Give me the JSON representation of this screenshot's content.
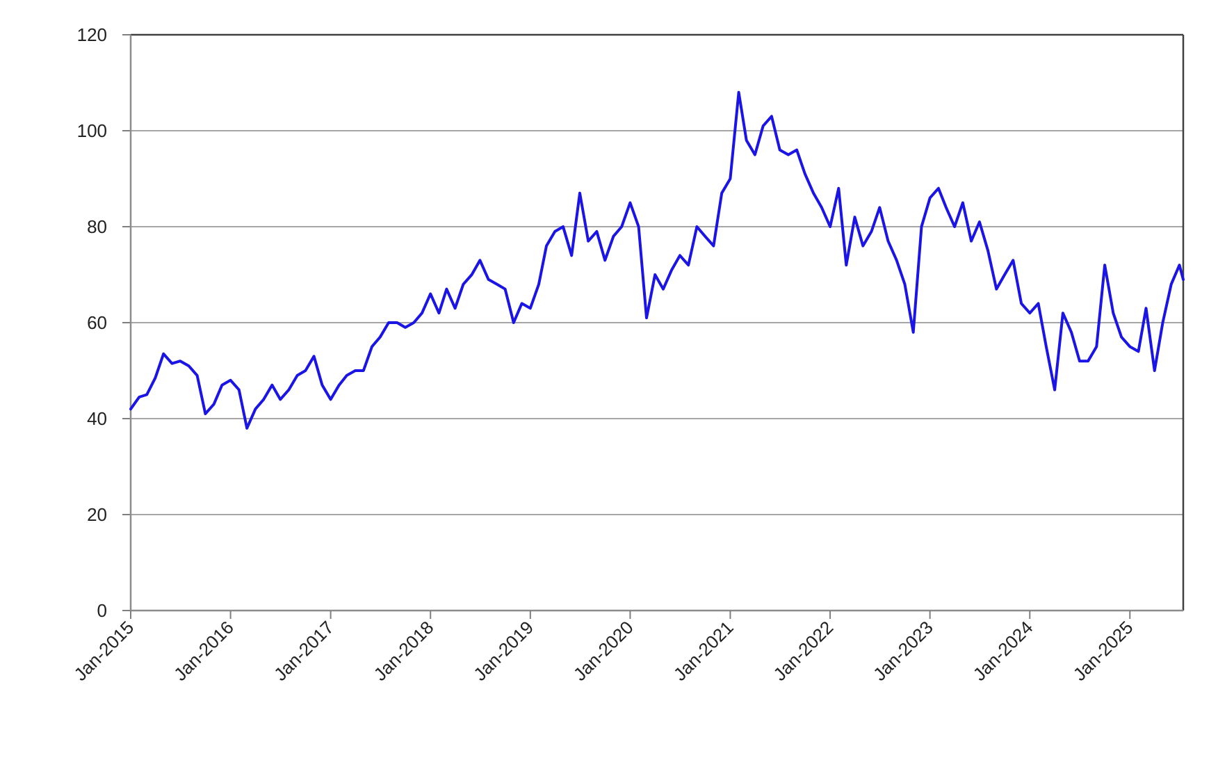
{
  "chart_data": {
    "type": "line",
    "title": "",
    "xlabel": "",
    "ylabel": "",
    "ylim": [
      0,
      120
    ],
    "yticks": [
      0,
      20,
      40,
      60,
      80,
      100,
      120
    ],
    "x_range": [
      "2015-01-01",
      "2025-07-15"
    ],
    "xticks": [
      {
        "date": "2015-01-01",
        "label": "Jan-2015"
      },
      {
        "date": "2016-01-01",
        "label": "Jan-2016"
      },
      {
        "date": "2017-01-01",
        "label": "Jan-2017"
      },
      {
        "date": "2018-01-01",
        "label": "Jan-2018"
      },
      {
        "date": "2019-01-01",
        "label": "Jan-2019"
      },
      {
        "date": "2020-01-01",
        "label": "Jan-2020"
      },
      {
        "date": "2021-01-01",
        "label": "Jan-2021"
      },
      {
        "date": "2022-01-01",
        "label": "Jan-2022"
      },
      {
        "date": "2023-01-01",
        "label": "Jan-2023"
      },
      {
        "date": "2024-01-01",
        "label": "Jan-2024"
      },
      {
        "date": "2025-01-01",
        "label": "Jan-2025"
      }
    ],
    "grid": "horizontal",
    "legend": "none",
    "series": [
      {
        "color": "#1a14e6",
        "points": [
          [
            "2015-01-01",
            42
          ],
          [
            "2015-02-01",
            44.5
          ],
          [
            "2015-03-01",
            45
          ],
          [
            "2015-04-01",
            48.5
          ],
          [
            "2015-05-01",
            53.5
          ],
          [
            "2015-06-01",
            51.5
          ],
          [
            "2015-07-01",
            52
          ],
          [
            "2015-08-01",
            51
          ],
          [
            "2015-09-01",
            49
          ],
          [
            "2015-10-01",
            41
          ],
          [
            "2015-11-01",
            43
          ],
          [
            "2015-12-01",
            47
          ],
          [
            "2016-01-01",
            48
          ],
          [
            "2016-02-01",
            46
          ],
          [
            "2016-03-01",
            38
          ],
          [
            "2016-04-01",
            42
          ],
          [
            "2016-05-01",
            44
          ],
          [
            "2016-06-01",
            47
          ],
          [
            "2016-07-01",
            44
          ],
          [
            "2016-08-01",
            46
          ],
          [
            "2016-09-01",
            49
          ],
          [
            "2016-10-01",
            50
          ],
          [
            "2016-11-01",
            53
          ],
          [
            "2016-12-01",
            47
          ],
          [
            "2017-01-01",
            44
          ],
          [
            "2017-02-01",
            47
          ],
          [
            "2017-03-01",
            49
          ],
          [
            "2017-04-01",
            50
          ],
          [
            "2017-05-01",
            50
          ],
          [
            "2017-06-01",
            55
          ],
          [
            "2017-07-01",
            57
          ],
          [
            "2017-08-01",
            60
          ],
          [
            "2017-09-01",
            60
          ],
          [
            "2017-10-01",
            59
          ],
          [
            "2017-11-01",
            60
          ],
          [
            "2017-12-01",
            62
          ],
          [
            "2018-01-01",
            66
          ],
          [
            "2018-02-01",
            62
          ],
          [
            "2018-03-01",
            67
          ],
          [
            "2018-04-01",
            63
          ],
          [
            "2018-05-01",
            68
          ],
          [
            "2018-06-01",
            70
          ],
          [
            "2018-07-01",
            73
          ],
          [
            "2018-08-01",
            69
          ],
          [
            "2018-09-01",
            68
          ],
          [
            "2018-10-01",
            67
          ],
          [
            "2018-11-01",
            60
          ],
          [
            "2018-12-01",
            64
          ],
          [
            "2019-01-01",
            63
          ],
          [
            "2019-02-01",
            68
          ],
          [
            "2019-03-01",
            76
          ],
          [
            "2019-04-01",
            79
          ],
          [
            "2019-05-01",
            80
          ],
          [
            "2019-06-01",
            74
          ],
          [
            "2019-07-01",
            87
          ],
          [
            "2019-08-01",
            77
          ],
          [
            "2019-09-01",
            79
          ],
          [
            "2019-10-01",
            73
          ],
          [
            "2019-11-01",
            78
          ],
          [
            "2019-12-01",
            80
          ],
          [
            "2020-01-01",
            85
          ],
          [
            "2020-02-01",
            80
          ],
          [
            "2020-03-01",
            61
          ],
          [
            "2020-04-01",
            70
          ],
          [
            "2020-05-01",
            67
          ],
          [
            "2020-06-01",
            71
          ],
          [
            "2020-07-01",
            74
          ],
          [
            "2020-08-01",
            72
          ],
          [
            "2020-09-01",
            80
          ],
          [
            "2020-10-01",
            78
          ],
          [
            "2020-11-01",
            76
          ],
          [
            "2020-12-01",
            87
          ],
          [
            "2021-01-01",
            90
          ],
          [
            "2021-02-01",
            108
          ],
          [
            "2021-03-01",
            98
          ],
          [
            "2021-04-01",
            95
          ],
          [
            "2021-05-01",
            101
          ],
          [
            "2021-06-01",
            103
          ],
          [
            "2021-07-01",
            96
          ],
          [
            "2021-08-01",
            95
          ],
          [
            "2021-09-01",
            96
          ],
          [
            "2021-10-01",
            91
          ],
          [
            "2021-11-01",
            87
          ],
          [
            "2021-12-01",
            84
          ],
          [
            "2022-01-01",
            80
          ],
          [
            "2022-02-01",
            88
          ],
          [
            "2022-03-01",
            72
          ],
          [
            "2022-04-01",
            82
          ],
          [
            "2022-05-01",
            76
          ],
          [
            "2022-06-01",
            79
          ],
          [
            "2022-07-01",
            84
          ],
          [
            "2022-08-01",
            77
          ],
          [
            "2022-09-01",
            73
          ],
          [
            "2022-10-01",
            68
          ],
          [
            "2022-11-01",
            58
          ],
          [
            "2022-12-01",
            80
          ],
          [
            "2023-01-01",
            86
          ],
          [
            "2023-02-01",
            88
          ],
          [
            "2023-03-01",
            84
          ],
          [
            "2023-04-01",
            80
          ],
          [
            "2023-05-01",
            85
          ],
          [
            "2023-06-01",
            77
          ],
          [
            "2023-07-01",
            81
          ],
          [
            "2023-08-01",
            75
          ],
          [
            "2023-09-01",
            67
          ],
          [
            "2023-10-01",
            70
          ],
          [
            "2023-11-01",
            73
          ],
          [
            "2023-12-01",
            64
          ],
          [
            "2024-01-01",
            62
          ],
          [
            "2024-02-01",
            64
          ],
          [
            "2024-03-01",
            55
          ],
          [
            "2024-04-01",
            46
          ],
          [
            "2024-05-01",
            62
          ],
          [
            "2024-06-01",
            58
          ],
          [
            "2024-07-01",
            52
          ],
          [
            "2024-08-01",
            52
          ],
          [
            "2024-09-01",
            55
          ],
          [
            "2024-10-01",
            72
          ],
          [
            "2024-11-01",
            62
          ],
          [
            "2024-12-01",
            57
          ],
          [
            "2025-01-01",
            55
          ],
          [
            "2025-02-01",
            54
          ],
          [
            "2025-03-01",
            63
          ],
          [
            "2025-04-01",
            50
          ],
          [
            "2025-05-01",
            60
          ],
          [
            "2025-06-01",
            68
          ],
          [
            "2025-07-01",
            72
          ],
          [
            "2025-07-15",
            69
          ]
        ]
      }
    ]
  }
}
